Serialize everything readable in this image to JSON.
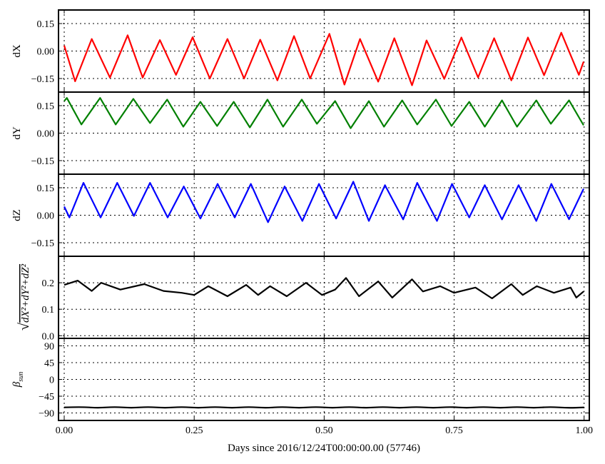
{
  "chart_data": {
    "type": "line",
    "xlabel": "Days since 2016/12/24T00:00:00.00 (57746)",
    "xlim": [
      -0.011,
      1.01
    ],
    "xticks": [
      "0.00",
      "0.25",
      "0.50",
      "0.75",
      "1.00"
    ],
    "xtick_values": [
      0,
      0.25,
      0.5,
      0.75,
      1.0
    ],
    "grid": true,
    "panels": [
      {
        "ylabel": "dX",
        "color": "#ff0000",
        "ylim": [
          -0.224,
          0.224
        ],
        "yticks": [
          "−0.15",
          "0.00",
          "0.15"
        ],
        "ytick_values": [
          -0.15,
          0,
          0.15
        ],
        "x": [
          0.0,
          0.021,
          0.053,
          0.088,
          0.122,
          0.151,
          0.184,
          0.215,
          0.247,
          0.28,
          0.314,
          0.346,
          0.377,
          0.41,
          0.442,
          0.473,
          0.51,
          0.539,
          0.569,
          0.604,
          0.635,
          0.669,
          0.697,
          0.731,
          0.764,
          0.796,
          0.827,
          0.86,
          0.892,
          0.923,
          0.956,
          0.99,
          0.999
        ],
        "y": [
          0.03,
          -0.165,
          0.066,
          -0.145,
          0.086,
          -0.145,
          0.06,
          -0.13,
          0.075,
          -0.15,
          0.066,
          -0.15,
          0.062,
          -0.16,
          0.082,
          -0.15,
          0.094,
          -0.183,
          0.066,
          -0.167,
          0.07,
          -0.187,
          0.058,
          -0.152,
          0.074,
          -0.144,
          0.07,
          -0.16,
          0.074,
          -0.132,
          0.1,
          -0.13,
          -0.058
        ]
      },
      {
        "ylabel": "dY",
        "color": "#008000",
        "ylim": [
          -0.224,
          0.224
        ],
        "yticks": [
          "−0.15",
          "0.00",
          "0.15"
        ],
        "ytick_values": [
          -0.15,
          0,
          0.15
        ],
        "x": [
          0.0,
          0.005,
          0.033,
          0.069,
          0.099,
          0.133,
          0.165,
          0.198,
          0.229,
          0.262,
          0.294,
          0.326,
          0.357,
          0.391,
          0.421,
          0.457,
          0.486,
          0.521,
          0.551,
          0.586,
          0.615,
          0.65,
          0.679,
          0.715,
          0.745,
          0.779,
          0.809,
          0.842,
          0.871,
          0.908,
          0.936,
          0.971,
          0.999
        ],
        "y": [
          0.175,
          0.192,
          0.047,
          0.192,
          0.047,
          0.187,
          0.055,
          0.183,
          0.035,
          0.171,
          0.039,
          0.171,
          0.031,
          0.183,
          0.035,
          0.183,
          0.051,
          0.175,
          0.027,
          0.175,
          0.035,
          0.179,
          0.047,
          0.183,
          0.039,
          0.171,
          0.035,
          0.179,
          0.035,
          0.179,
          0.051,
          0.179,
          0.043
        ]
      },
      {
        "ylabel": "dZ",
        "color": "#0000ff",
        "ylim": [
          -0.224,
          0.224
        ],
        "yticks": [
          "−0.15",
          "0.00",
          "0.15"
        ],
        "ytick_values": [
          -0.15,
          0,
          0.15
        ],
        "x": [
          0.0,
          0.01,
          0.037,
          0.07,
          0.102,
          0.134,
          0.165,
          0.199,
          0.23,
          0.262,
          0.295,
          0.328,
          0.359,
          0.392,
          0.424,
          0.458,
          0.49,
          0.523,
          0.556,
          0.586,
          0.617,
          0.652,
          0.679,
          0.717,
          0.746,
          0.779,
          0.809,
          0.842,
          0.874,
          0.908,
          0.937,
          0.971,
          0.999
        ],
        "y": [
          0.047,
          -0.012,
          0.177,
          -0.012,
          0.177,
          -0.004,
          0.177,
          -0.012,
          0.157,
          -0.018,
          0.171,
          -0.012,
          0.171,
          -0.038,
          0.157,
          -0.031,
          0.171,
          -0.018,
          0.183,
          -0.031,
          0.164,
          -0.023,
          0.177,
          -0.031,
          0.171,
          -0.012,
          0.164,
          -0.023,
          0.164,
          -0.031,
          0.171,
          -0.022,
          0.144
        ]
      },
      {
        "ylabel_radical": "√",
        "ylabel": "dX²+dY²+dZ²",
        "color": "#000000",
        "ylim": [
          -0.01,
          0.3
        ],
        "yticks": [
          "0.0",
          "0.1",
          "0.2"
        ],
        "ytick_values": [
          0,
          0.1,
          0.2
        ],
        "x": [
          0.0,
          0.026,
          0.053,
          0.071,
          0.108,
          0.154,
          0.191,
          0.226,
          0.25,
          0.277,
          0.314,
          0.35,
          0.373,
          0.396,
          0.428,
          0.465,
          0.496,
          0.521,
          0.542,
          0.567,
          0.604,
          0.631,
          0.669,
          0.69,
          0.723,
          0.75,
          0.791,
          0.823,
          0.86,
          0.882,
          0.909,
          0.942,
          0.974,
          0.985,
          0.999
        ],
        "y": [
          0.192,
          0.208,
          0.169,
          0.2,
          0.174,
          0.195,
          0.169,
          0.162,
          0.154,
          0.187,
          0.149,
          0.192,
          0.154,
          0.187,
          0.149,
          0.2,
          0.154,
          0.174,
          0.218,
          0.149,
          0.205,
          0.144,
          0.213,
          0.167,
          0.187,
          0.162,
          0.182,
          0.141,
          0.195,
          0.154,
          0.187,
          0.162,
          0.182,
          0.144,
          0.167
        ]
      },
      {
        "ylabel": "β",
        "ylabel_sub": "sun",
        "color": "#000000",
        "ylim": [
          -110,
          110
        ],
        "yticks": [
          "−90",
          "−45",
          "0",
          "45",
          "90"
        ],
        "ytick_values": [
          -90,
          -45,
          0,
          45,
          90
        ],
        "x": [
          0,
          0.032,
          0.065,
          0.097,
          0.129,
          0.161,
          0.194,
          0.226,
          0.258,
          0.29,
          0.323,
          0.355,
          0.387,
          0.419,
          0.452,
          0.484,
          0.516,
          0.548,
          0.581,
          0.613,
          0.645,
          0.677,
          0.71,
          0.742,
          0.774,
          0.806,
          0.839,
          0.871,
          0.903,
          0.935,
          0.968,
          1.0
        ],
        "y": [
          -75,
          -73.5,
          -76.5,
          -73.5,
          -76.5,
          -73.5,
          -76.5,
          -73.5,
          -76.5,
          -73.5,
          -76.5,
          -73.5,
          -76.5,
          -73.5,
          -76.5,
          -73.5,
          -76.5,
          -73.5,
          -76.5,
          -73.5,
          -76.5,
          -73.5,
          -76.5,
          -73.5,
          -76.5,
          -73.5,
          -76.5,
          -73.5,
          -76.5,
          -73.5,
          -76.5,
          -75
        ],
        "smooth": true
      }
    ]
  }
}
